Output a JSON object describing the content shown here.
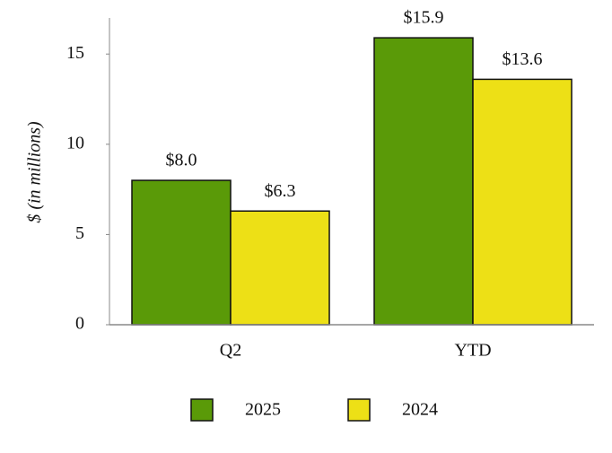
{
  "chart_data": {
    "type": "bar",
    "y_label": "$ (in millions)",
    "categories": [
      "Q2",
      "YTD"
    ],
    "series": [
      {
        "name": "2025",
        "color": "#5a9a08",
        "values": [
          8.0,
          15.9
        ],
        "value_labels": [
          "$8.0",
          "$15.9"
        ]
      },
      {
        "name": "2024",
        "color": "#ede016",
        "values": [
          6.3,
          13.6
        ],
        "value_labels": [
          "$6.3",
          "$13.6"
        ]
      }
    ],
    "ylim": [
      0,
      17
    ],
    "yticks": [
      0,
      5,
      10,
      15
    ],
    "grid": false
  }
}
